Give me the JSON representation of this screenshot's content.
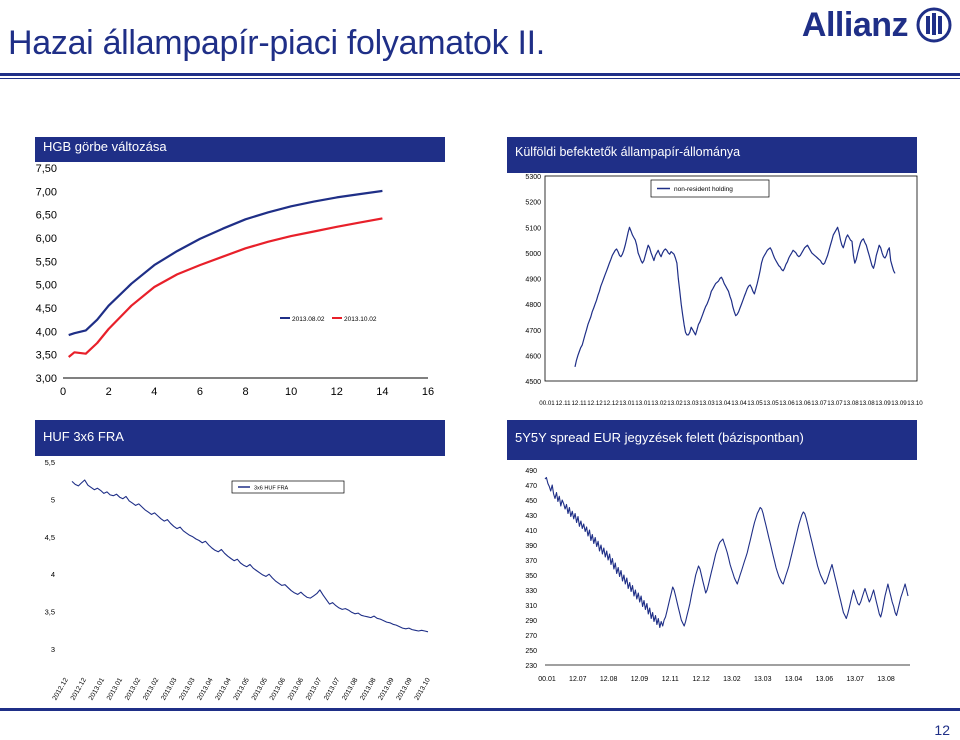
{
  "page": {
    "title": "Hazai állampapír-piaci folyamatok II.",
    "logo_text": "Allianz",
    "page_number": "12",
    "brand_color": "#1f2f87"
  },
  "chart_data": [
    {
      "id": "hgb",
      "type": "line",
      "title": "HGB görbe változása",
      "xlabel": "",
      "ylabel": "",
      "xlim": [
        0,
        16
      ],
      "ylim": [
        3.0,
        7.5
      ],
      "xticks": [
        0,
        2,
        4,
        6,
        8,
        10,
        12,
        14,
        16
      ],
      "yticks": [
        3.0,
        3.5,
        4.0,
        4.5,
        5.0,
        5.5,
        6.0,
        6.5,
        7.0,
        7.5
      ],
      "ytick_labels": [
        "3,00",
        "3,50",
        "4,00",
        "4,50",
        "5,00",
        "5,50",
        "6,00",
        "6,50",
        "7,00",
        "7,50"
      ],
      "legend_position": "bottom-right",
      "series": [
        {
          "name": "2013.08.02",
          "color": "#1f2f87",
          "x": [
            0.25,
            0.5,
            1,
            1.5,
            2,
            3,
            4,
            5,
            6,
            7,
            8,
            9,
            10,
            11,
            12,
            13,
            14
          ],
          "y": [
            3.92,
            3.96,
            4.02,
            4.25,
            4.55,
            5.02,
            5.42,
            5.72,
            5.98,
            6.2,
            6.4,
            6.55,
            6.68,
            6.78,
            6.87,
            6.94,
            7.01
          ]
        },
        {
          "name": "2013.10.02",
          "color": "#e8202a",
          "x": [
            0.25,
            0.5,
            1,
            1.5,
            2,
            3,
            4,
            5,
            6,
            7,
            8,
            9,
            10,
            11,
            12,
            13,
            14
          ],
          "y": [
            3.45,
            3.55,
            3.52,
            3.75,
            4.05,
            4.55,
            4.95,
            5.22,
            5.42,
            5.6,
            5.78,
            5.92,
            6.04,
            6.14,
            6.24,
            6.33,
            6.42
          ]
        }
      ]
    },
    {
      "id": "nonres",
      "type": "line",
      "title": "Külföldi befektetők állampapír-állománya",
      "xlabel": "",
      "ylabel": "",
      "ylim": [
        4500,
        5300
      ],
      "yticks": [
        4500,
        4600,
        4700,
        4800,
        4900,
        5000,
        5100,
        5200,
        5300
      ],
      "x_labels": [
        "00.01",
        "12.11",
        "12.11",
        "12.12",
        "12.12",
        "13.01",
        "13.01",
        "13.02",
        "13.02",
        "13.03",
        "13.03",
        "13.04",
        "13.04",
        "13.05",
        "13.05",
        "13.06",
        "13.06",
        "13.07",
        "13.07",
        "13.08",
        "13.08",
        "13.09",
        "13.09",
        "13.10"
      ],
      "legend_position": "top-right",
      "series": [
        {
          "name": "non-resident holding",
          "color": "#1f2f87",
          "values": [
            4555,
            4580,
            4600,
            4615,
            4630,
            4640,
            4660,
            4680,
            4700,
            4720,
            4735,
            4750,
            4770,
            4785,
            4800,
            4815,
            4835,
            4850,
            4870,
            4885,
            4900,
            4915,
            4930,
            4945,
            4960,
            4975,
            4990,
            5000,
            5010,
            5015,
            5005,
            4990,
            4985,
            4995,
            5010,
            5030,
            5055,
            5080,
            5100,
            5085,
            5070,
            5060,
            5050,
            5030,
            5000,
            4985,
            4970,
            4960,
            4970,
            4990,
            5010,
            5030,
            5020,
            5000,
            4985,
            4970,
            4990,
            5000,
            5010,
            4995,
            4985,
            5000,
            5010,
            5015,
            5010,
            5000,
            4995,
            5005,
            5000,
            4995,
            4980,
            4960,
            4900,
            4850,
            4800,
            4760,
            4720,
            4690,
            4680,
            4680,
            4690,
            4710,
            4700,
            4690,
            4680,
            4700,
            4720,
            4730,
            4745,
            4760,
            4775,
            4790,
            4800,
            4815,
            4830,
            4850,
            4860,
            4870,
            4880,
            4885,
            4890,
            4900,
            4905,
            4895,
            4880,
            4870,
            4860,
            4850,
            4830,
            4815,
            4790,
            4770,
            4755,
            4760,
            4770,
            4785,
            4800,
            4815,
            4830,
            4845,
            4860,
            4870,
            4875,
            4865,
            4850,
            4840,
            4860,
            4880,
            4905,
            4930,
            4960,
            4980,
            4990,
            5000,
            5010,
            5015,
            5020,
            5010,
            4995,
            4980,
            4970,
            4960,
            4950,
            4945,
            4935,
            4930,
            4940,
            4955,
            4965,
            4980,
            4990,
            5000,
            5010,
            5005,
            5000,
            4990,
            4985,
            4990,
            5000,
            5010,
            5020,
            5025,
            5030,
            5020,
            5010,
            5000,
            4995,
            4990,
            4985,
            4980,
            4975,
            4970,
            4960,
            4955,
            4960,
            4975,
            4990,
            5010,
            5030,
            5050,
            5070,
            5080,
            5090,
            5100,
            5080,
            5050,
            5030,
            5020,
            5040,
            5060,
            5070,
            5060,
            5050,
            5045,
            4990,
            4960,
            4975,
            5000,
            5020,
            5040,
            5050,
            5055,
            5040,
            5030,
            5010,
            4990,
            4970,
            4950,
            4940,
            4960,
            4990,
            5010,
            5030,
            5020,
            5000,
            4985,
            4980,
            4990,
            5010,
            5020,
            4970,
            4950,
            4930,
            4920
          ]
        }
      ]
    },
    {
      "id": "fra",
      "type": "line",
      "title": "HUF 3x6 FRA",
      "xlabel": "",
      "ylabel": "",
      "ylim": [
        3,
        5.5
      ],
      "yticks": [
        3,
        3.5,
        4,
        4.5,
        5,
        5.5
      ],
      "ytick_labels": [
        "3",
        "3,5",
        "4",
        "4,5",
        "5",
        "5,5"
      ],
      "x_labels": [
        "2012.12",
        "2012.12",
        "2013.01",
        "2013.01",
        "2013.02",
        "2013.02",
        "2013.03",
        "2013.03",
        "2013.04",
        "2013.04",
        "2013.05",
        "2013.05",
        "2013.06",
        "2013.06",
        "2013.07",
        "2013.07",
        "2013.08",
        "2013.08",
        "2013.09",
        "2013.09",
        "2013.10"
      ],
      "legend_position": "top",
      "series": [
        {
          "name": "3x6 HUF FRA",
          "color": "#1f2f87",
          "values": [
            5.24,
            5.2,
            5.18,
            5.22,
            5.26,
            5.19,
            5.16,
            5.13,
            5.15,
            5.12,
            5.08,
            5.1,
            5.06,
            5.05,
            5.07,
            5.03,
            5.01,
            5.04,
            4.98,
            4.95,
            4.92,
            4.94,
            4.9,
            4.86,
            4.83,
            4.8,
            4.82,
            4.78,
            4.74,
            4.71,
            4.73,
            4.68,
            4.64,
            4.61,
            4.63,
            4.58,
            4.55,
            4.52,
            4.5,
            4.47,
            4.45,
            4.42,
            4.44,
            4.39,
            4.35,
            4.32,
            4.3,
            4.33,
            4.28,
            4.24,
            4.21,
            4.18,
            4.2,
            4.15,
            4.12,
            4.1,
            4.13,
            4.08,
            4.05,
            4.02,
            3.99,
            3.97,
            4.0,
            3.95,
            3.91,
            3.88,
            3.85,
            3.86,
            3.82,
            3.78,
            3.75,
            3.73,
            3.76,
            3.72,
            3.69,
            3.68,
            3.71,
            3.74,
            3.79,
            3.72,
            3.66,
            3.6,
            3.62,
            3.58,
            3.55,
            3.53,
            3.54,
            3.52,
            3.49,
            3.47,
            3.48,
            3.45,
            3.44,
            3.43,
            3.42,
            3.44,
            3.41,
            3.4,
            3.38,
            3.36,
            3.35,
            3.33,
            3.32,
            3.3,
            3.28,
            3.27,
            3.28,
            3.26,
            3.25,
            3.24,
            3.25,
            3.24,
            3.23
          ]
        }
      ]
    },
    {
      "id": "spread",
      "type": "line",
      "title": "5Y5Y spread EUR jegyzések felett (bázispontban)",
      "xlabel": "",
      "ylabel": "",
      "ylim": [
        230,
        490
      ],
      "yticks": [
        230,
        250,
        270,
        290,
        310,
        330,
        350,
        370,
        390,
        410,
        430,
        450,
        470,
        490
      ],
      "x_labels": [
        "00.01",
        "12.07",
        "12.08",
        "12.09",
        "12.11",
        "12.12",
        "13.02",
        "13.03",
        "13.04",
        "13.06",
        "13.07",
        "13.08"
      ],
      "series": [
        {
          "name": "",
          "color": "#1f2f87",
          "values": [
            478,
            480,
            472,
            468,
            462,
            470,
            458,
            452,
            460,
            448,
            455,
            442,
            450,
            445,
            438,
            444,
            432,
            440,
            428,
            435,
            425,
            432,
            420,
            428,
            415,
            422,
            412,
            418,
            408,
            414,
            402,
            410,
            396,
            404,
            392,
            400,
            388,
            395,
            382,
            390,
            378,
            386,
            374,
            382,
            370,
            378,
            364,
            372,
            358,
            366,
            352,
            360,
            348,
            356,
            342,
            350,
            338,
            346,
            332,
            340,
            328,
            336,
            322,
            330,
            318,
            326,
            314,
            322,
            308,
            316,
            304,
            312,
            298,
            306,
            292,
            300,
            288,
            296,
            284,
            292,
            280,
            288,
            282,
            290,
            294,
            302,
            310,
            318,
            326,
            334,
            330,
            322,
            314,
            306,
            298,
            290,
            286,
            282,
            288,
            296,
            304,
            312,
            322,
            332,
            340,
            350,
            356,
            362,
            358,
            350,
            342,
            334,
            326,
            330,
            338,
            346,
            354,
            362,
            370,
            378,
            384,
            390,
            394,
            396,
            398,
            392,
            386,
            380,
            372,
            364,
            358,
            352,
            346,
            342,
            338,
            344,
            350,
            356,
            362,
            368,
            374,
            380,
            388,
            396,
            404,
            412,
            420,
            426,
            432,
            436,
            440,
            438,
            432,
            424,
            416,
            408,
            400,
            392,
            384,
            376,
            368,
            360,
            354,
            348,
            344,
            340,
            338,
            344,
            350,
            356,
            362,
            370,
            378,
            386,
            394,
            402,
            410,
            418,
            424,
            430,
            434,
            432,
            426,
            418,
            410,
            402,
            394,
            386,
            378,
            370,
            362,
            356,
            350,
            346,
            342,
            338,
            340,
            346,
            352,
            358,
            364,
            356,
            348,
            340,
            332,
            324,
            316,
            308,
            300,
            296,
            292,
            298,
            306,
            314,
            322,
            330,
            324,
            318,
            312,
            310,
            314,
            320,
            326,
            332,
            326,
            320,
            314,
            318,
            324,
            330,
            322,
            314,
            306,
            298,
            294,
            302,
            312,
            322,
            330,
            338,
            330,
            322,
            314,
            308,
            300,
            296,
            304,
            312,
            320,
            326,
            332,
            338,
            330,
            322
          ]
        }
      ]
    }
  ]
}
